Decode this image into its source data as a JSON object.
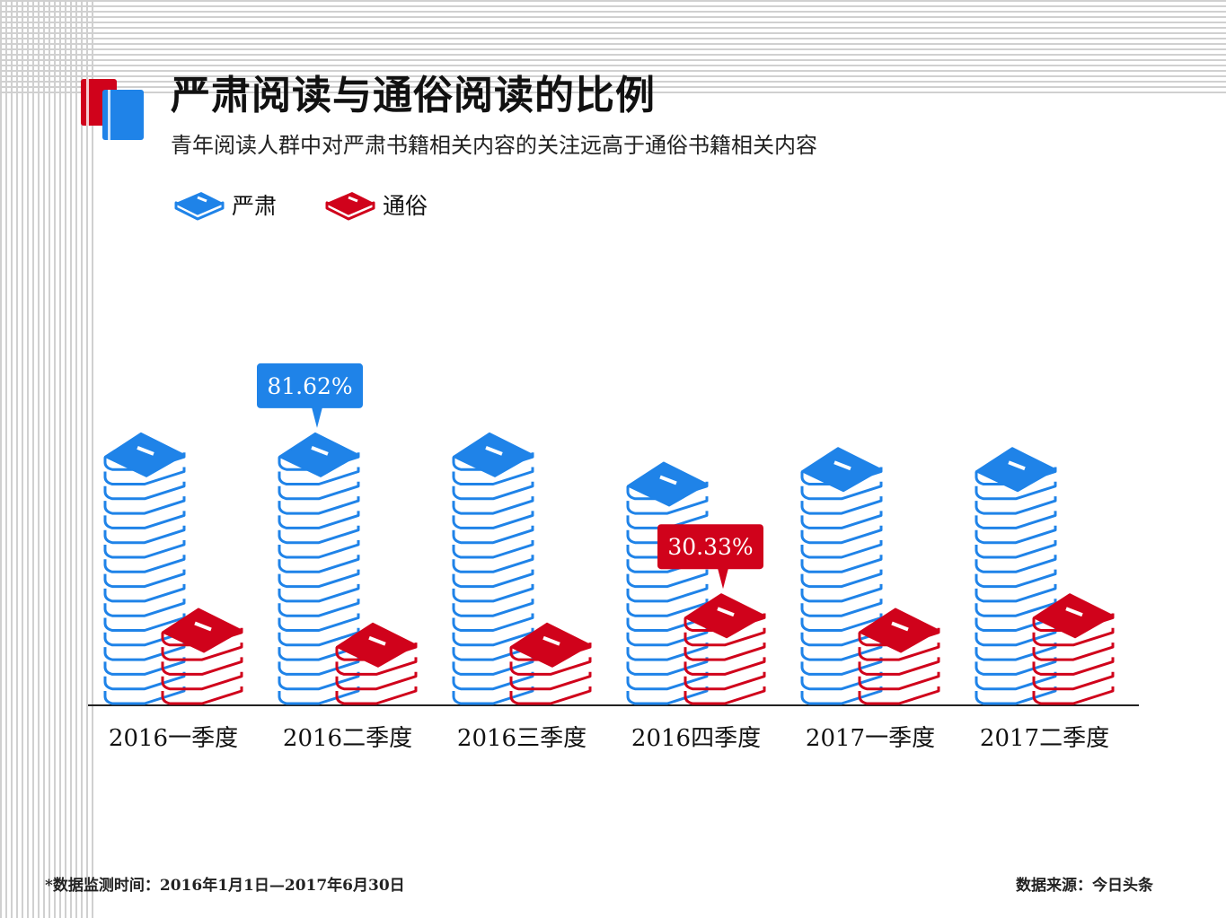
{
  "header": {
    "title": "严肃阅读与通俗阅读的比例",
    "subtitle": "青年阅读人群中对严肃书籍相关内容的关注远高于通俗书籍相关内容"
  },
  "legend": {
    "serious": "严肃",
    "popular": "通俗"
  },
  "colors": {
    "serious": "#1f83e8",
    "popular": "#d0021b"
  },
  "chart_data": {
    "type": "bar",
    "title": "严肃阅读与通俗阅读的比例",
    "subtitle": "青年阅读人群中对严肃书籍相关内容的关注远高于通俗书籍相关内容",
    "categories": [
      "2016一季度",
      "2016二季度",
      "2016三季度",
      "2016四季度",
      "2017一季度",
      "2017二季度"
    ],
    "series": [
      {
        "name": "严肃",
        "values": [
          78.0,
          81.62,
          79.0,
          69.67,
          75.0,
          73.0
        ]
      },
      {
        "name": "通俗",
        "values": [
          22.0,
          18.38,
          21.0,
          30.33,
          25.0,
          27.0
        ]
      }
    ],
    "units": "%",
    "annotations": [
      {
        "series": "严肃",
        "category": "2016二季度",
        "text": "81.62%"
      },
      {
        "series": "通俗",
        "category": "2016四季度",
        "text": "30.33%"
      }
    ],
    "ylim": [
      0,
      100
    ],
    "legend_position": "top-left",
    "grid": true
  },
  "footer": {
    "note": "*数据监测时间：2016年1月1日—2017年6月30日",
    "source": "数据来源：今日头条"
  }
}
